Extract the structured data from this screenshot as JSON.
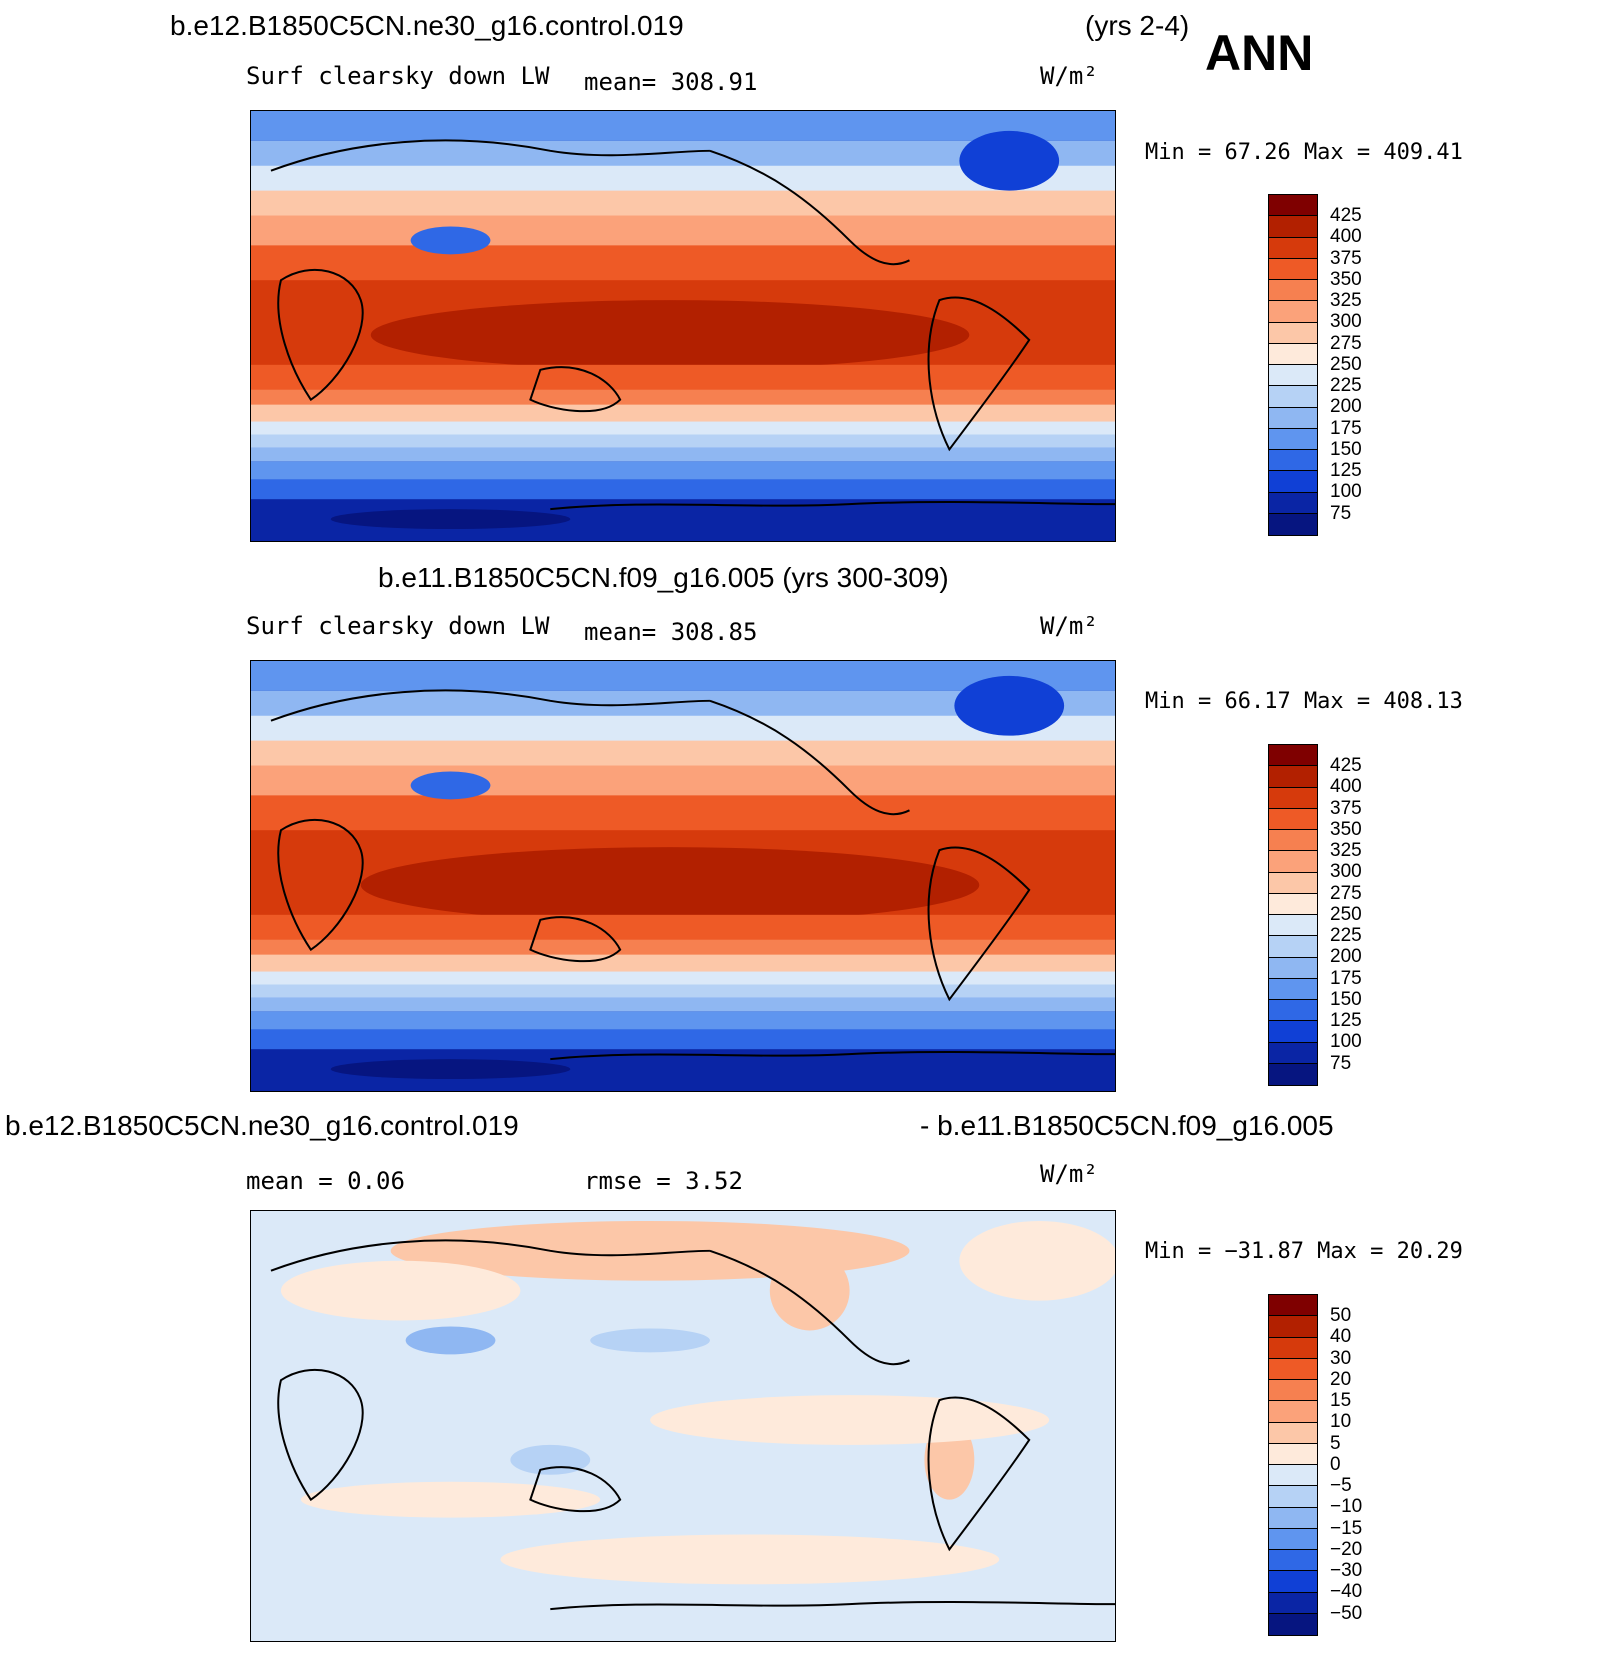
{
  "header": {
    "case1": "b.e12.B1850C5CN.ne30_g16.control.019",
    "years1": "(yrs 2-4)",
    "season": "ANN",
    "case2_full": "b.e11.B1850C5CN.f09_g16.005 (yrs 300-309)",
    "diff_left": "b.e12.B1850C5CN.ne30_g16.control.019",
    "diff_right": "- b.e11.B1850C5CN.f09_g16.005"
  },
  "panels": [
    {
      "variable": "Surf clearsky down LW",
      "stat": "mean=  308.91",
      "units": "W/m²",
      "minmax": "Min =  67.26 Max = 409.41",
      "legend": [
        "425",
        "400",
        "375",
        "350",
        "325",
        "300",
        "275",
        "250",
        "225",
        "200",
        "175",
        "150",
        "125",
        "100",
        "75"
      ]
    },
    {
      "variable": "Surf clearsky down LW",
      "stat": "mean=  308.85",
      "units": "W/m²",
      "minmax": "Min =  66.17 Max = 408.13",
      "legend": [
        "425",
        "400",
        "375",
        "350",
        "325",
        "300",
        "275",
        "250",
        "225",
        "200",
        "175",
        "150",
        "125",
        "100",
        "75"
      ]
    },
    {
      "stat_mean": "mean =   0.06",
      "stat_rmse": "rmse =   3.52",
      "units": "W/m²",
      "minmax": "Min = −31.87 Max =  20.29",
      "legend": [
        "50",
        "40",
        "30",
        "20",
        "15",
        "10",
        "5",
        "0",
        "−5",
        "−10",
        "−15",
        "−20",
        "−30",
        "−40",
        "−50"
      ]
    }
  ],
  "colors": {
    "scale": [
      "#7f0000",
      "#b22000",
      "#d63a0c",
      "#ee5a26",
      "#f68050",
      "#fba27a",
      "#fcc7a8",
      "#feeadb",
      "#dbe9f8",
      "#b6d2f5",
      "#8fb7f2",
      "#5f95ef",
      "#2f68e6",
      "#1040d6",
      "#0a25a5",
      "#061580"
    ]
  }
}
